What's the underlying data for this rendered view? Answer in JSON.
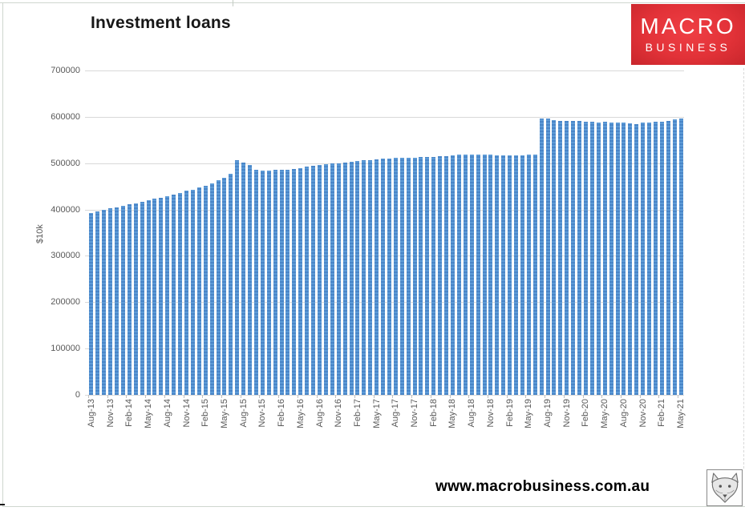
{
  "header": {
    "title": "Investment loans"
  },
  "logo": {
    "line1": "MACRO",
    "line2": "BUSINESS",
    "bg_color": "#e23238",
    "text_color": "#ffffff"
  },
  "footer": {
    "url": "www.macrobusiness.com.au",
    "icon": "fox-logo-icon"
  },
  "chart_data": {
    "type": "bar",
    "title": "Investment loans",
    "xlabel": "",
    "ylabel": "$10k",
    "ylim": [
      0,
      700000
    ],
    "yticks": [
      0,
      100000,
      200000,
      300000,
      400000,
      500000,
      600000,
      700000
    ],
    "grid": true,
    "legend": false,
    "x_label_every": 3,
    "bar_color": "#4f8cca",
    "gridline_color": "#d9d9d9",
    "categories": [
      "Aug-13",
      "Sep-13",
      "Oct-13",
      "Nov-13",
      "Dec-13",
      "Jan-14",
      "Feb-14",
      "Mar-14",
      "Apr-14",
      "May-14",
      "Jun-14",
      "Jul-14",
      "Aug-14",
      "Sep-14",
      "Oct-14",
      "Nov-14",
      "Dec-14",
      "Jan-15",
      "Feb-15",
      "Mar-15",
      "Apr-15",
      "May-15",
      "Jun-15",
      "Jul-15",
      "Aug-15",
      "Sep-15",
      "Oct-15",
      "Nov-15",
      "Dec-15",
      "Jan-16",
      "Feb-16",
      "Mar-16",
      "Apr-16",
      "May-16",
      "Jun-16",
      "Jul-16",
      "Aug-16",
      "Sep-16",
      "Oct-16",
      "Nov-16",
      "Dec-16",
      "Jan-17",
      "Feb-17",
      "Mar-17",
      "Apr-17",
      "May-17",
      "Jun-17",
      "Jul-17",
      "Aug-17",
      "Sep-17",
      "Oct-17",
      "Nov-17",
      "Dec-17",
      "Jan-18",
      "Feb-18",
      "Mar-18",
      "Apr-18",
      "May-18",
      "Jun-18",
      "Jul-18",
      "Aug-18",
      "Sep-18",
      "Oct-18",
      "Nov-18",
      "Dec-18",
      "Jan-19",
      "Feb-19",
      "Mar-19",
      "Apr-19",
      "May-19",
      "Jun-19",
      "Jul-19",
      "Aug-19",
      "Sep-19",
      "Oct-19",
      "Nov-19",
      "Dec-19",
      "Jan-20",
      "Feb-20",
      "Mar-20",
      "Apr-20",
      "May-20",
      "Jun-20",
      "Jul-20",
      "Aug-20",
      "Sep-20",
      "Oct-20",
      "Nov-20",
      "Dec-20",
      "Jan-21",
      "Feb-21",
      "Mar-21",
      "Apr-21",
      "May-21"
    ],
    "values": [
      393000,
      396000,
      400000,
      402000,
      405000,
      408000,
      411000,
      414000,
      417000,
      420000,
      423000,
      426000,
      429000,
      433000,
      436000,
      440000,
      443000,
      448000,
      452000,
      457000,
      463000,
      468000,
      477000,
      506000,
      501000,
      496000,
      486000,
      484000,
      484000,
      485000,
      485000,
      486000,
      488000,
      490000,
      492000,
      494000,
      496000,
      497000,
      499000,
      500000,
      502000,
      503000,
      505000,
      506000,
      507000,
      509000,
      510000,
      510000,
      511000,
      511000,
      512000,
      512000,
      513000,
      513000,
      514000,
      515000,
      516000,
      517000,
      518000,
      519000,
      519000,
      518000,
      518000,
      518000,
      517000,
      517000,
      517000,
      517000,
      517000,
      518000,
      518000,
      597000,
      597000,
      593000,
      592000,
      592000,
      592000,
      591000,
      590000,
      589000,
      588000,
      589000,
      588000,
      587000,
      587000,
      586000,
      585000,
      587000,
      588000,
      589000,
      590000,
      592000,
      594000,
      596000
    ]
  }
}
